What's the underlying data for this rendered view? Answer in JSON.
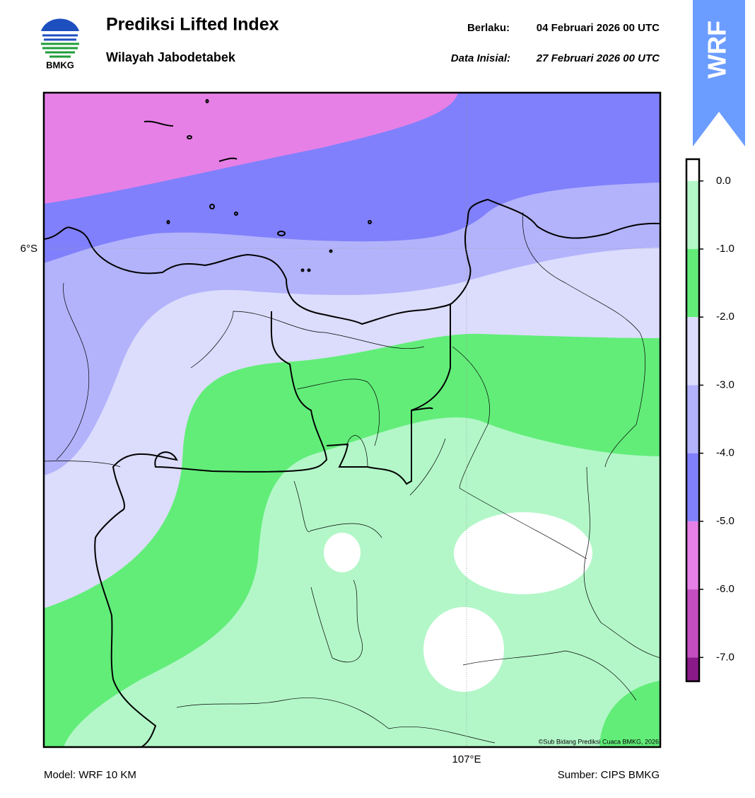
{
  "header": {
    "title": "Prediksi Lifted Index",
    "subtitle": "Wilayah Jabodetabek",
    "valid_label": "Berlaku:",
    "valid_date": "04 Februari 2026 00 UTC",
    "init_label": "Data Inisial:",
    "init_date": "27 Februari 2026 00 UTC",
    "logo_text": "BMKG",
    "badge": "WRF"
  },
  "map": {
    "lat_label": "6°S",
    "lon_label": "107°E",
    "credit": "©Sub Bidang Prediksi Cuaca BMKG, 2026"
  },
  "colorbar": {
    "range": [
      -7.35,
      0.32
    ],
    "ticks": [
      {
        "value": 0,
        "label": "0.0"
      },
      {
        "value": -1,
        "label": "-1.0"
      },
      {
        "value": -2,
        "label": "-2.0"
      },
      {
        "value": -3,
        "label": "-3.0"
      },
      {
        "value": -4,
        "label": "-4.0"
      },
      {
        "value": -5,
        "label": "-5.0"
      },
      {
        "value": -6,
        "label": "-6.0"
      },
      {
        "value": -7,
        "label": "-7.0"
      }
    ],
    "colors": [
      "#ffffff",
      "#b3f7c8",
      "#62ed79",
      "#dcdcfc",
      "#b3b3fc",
      "#8080fc",
      "#e680e6",
      "#c44dbf",
      "#8b1a89"
    ]
  },
  "footer": {
    "model": "Model: WRF 10 KM",
    "source": "Sumber: CIPS BMKG"
  }
}
